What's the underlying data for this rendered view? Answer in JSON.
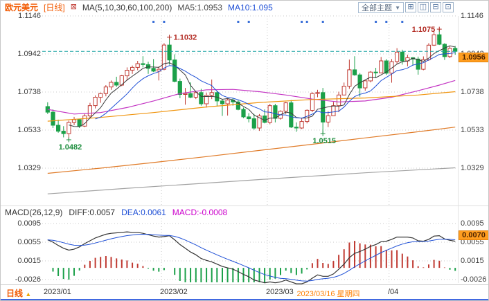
{
  "header": {
    "symbol": "欧元美元",
    "period": "[日线]",
    "ma_title": "MA(5,10,30,60,100,200)",
    "ma5": "MA5:1.0953",
    "ma10": "MA10:1.095",
    "theme_selector": "全部主题"
  },
  "icons": {
    "indicator": "⊠",
    "theme_caret": "▼",
    "period_caret": "▲",
    "layouts": [
      "⊞",
      "◫",
      "⊟",
      "⊡"
    ],
    "layout_names": [
      "layout-grid-button",
      "layout-split-vertical-button",
      "layout-split-horizontal-button",
      "layout-single-button"
    ]
  },
  "main_chart": {
    "y_axis_labels": [
      "1.1146",
      "1.0942",
      "1.0738",
      "1.0533",
      "1.0329"
    ],
    "price_tag": "1.0956"
  },
  "macd_panel": {
    "title": "MACD(26,12,9)",
    "diff_label": "DIFF:0.0057",
    "dea_label": "DEA:0.0061",
    "macd_label": "MACD:-0.0008",
    "y_axis_labels": [
      "0.0095",
      "0.0055",
      "0.0015",
      "-0.0026"
    ],
    "value_tag": "0.0070"
  },
  "bottom_bar": {
    "period_label": "日线",
    "crosshair_date": "2023/03/16 星期四",
    "crosshair_index": 53,
    "x_labels": [
      {
        "text": "2023/01",
        "index": 0
      },
      {
        "text": "2023/02",
        "index": 22
      },
      {
        "text": "2023/03",
        "index": 42
      },
      {
        "text": "/04",
        "index": 65
      }
    ]
  },
  "chart_data": [
    {
      "type": "candlestick",
      "title": "欧元美元 日线 (EUR/USD Daily) with MA(5,10,30,60,100,200)",
      "y_axis": {
        "ticks": [
          1.1146,
          1.0942,
          1.0738,
          1.0533,
          1.0329
        ]
      },
      "x_axis": {
        "labels": [
          "2023/01",
          "2023/02",
          "2023/03",
          "2023/04"
        ],
        "month_start_indices": [
          0,
          22,
          42,
          65
        ]
      },
      "last_price": 1.0956,
      "up_color": "#c03a32",
      "down_color": "#1ba049",
      "last_price_line_color": "#17a2a2",
      "candles": [
        [
          1.066,
          1.0683,
          1.062,
          1.063
        ],
        [
          1.063,
          1.0645,
          1.0545,
          1.056
        ],
        [
          1.056,
          1.059,
          1.052,
          1.0528
        ],
        [
          1.0528,
          1.0555,
          1.0495,
          1.0515
        ],
        [
          1.0515,
          1.0585,
          1.0482,
          1.0575
        ],
        [
          1.0575,
          1.0605,
          1.056,
          1.059
        ],
        [
          1.059,
          1.0595,
          1.0545,
          1.0555
        ],
        [
          1.0555,
          1.062,
          1.055,
          1.061
        ],
        [
          1.061,
          1.068,
          1.06,
          1.0665
        ],
        [
          1.0665,
          1.072,
          1.065,
          1.071
        ],
        [
          1.071,
          1.0735,
          1.068,
          1.073
        ],
        [
          1.073,
          1.0775,
          1.0715,
          1.0765
        ],
        [
          1.0765,
          1.08,
          1.075,
          1.079
        ],
        [
          1.079,
          1.082,
          1.0765,
          1.0775
        ],
        [
          1.0775,
          1.083,
          1.077,
          1.0825
        ],
        [
          1.0825,
          1.087,
          1.08,
          1.0855
        ],
        [
          1.0855,
          1.088,
          1.0835,
          1.087
        ],
        [
          1.087,
          1.0905,
          1.0855,
          1.089
        ],
        [
          1.089,
          1.093,
          1.087,
          1.0885
        ],
        [
          1.0885,
          1.09,
          1.0835,
          1.0865
        ],
        [
          1.0865,
          1.0915,
          1.0845,
          1.085
        ],
        [
          1.085,
          1.0875,
          1.08,
          1.086
        ],
        [
          1.086,
          1.1,
          1.0855,
          1.099
        ],
        [
          1.099,
          1.1032,
          1.0885,
          1.091
        ],
        [
          1.091,
          1.094,
          1.079,
          1.0795
        ],
        [
          1.0795,
          1.081,
          1.0705,
          1.0725
        ],
        [
          1.0725,
          1.076,
          1.067,
          1.073
        ],
        [
          1.073,
          1.079,
          1.0705,
          1.071
        ],
        [
          1.071,
          1.0745,
          1.07,
          1.0735
        ],
        [
          1.0735,
          1.0755,
          1.0665,
          1.0675
        ],
        [
          1.0675,
          1.0735,
          1.0655,
          1.072
        ],
        [
          1.072,
          1.0805,
          1.07,
          1.0735
        ],
        [
          1.0735,
          1.0745,
          1.066,
          1.069
        ],
        [
          1.069,
          1.07,
          1.061,
          1.0675
        ],
        [
          1.0675,
          1.0705,
          1.0612,
          1.0695
        ],
        [
          1.0695,
          1.0705,
          1.0665,
          1.0685
        ],
        [
          1.0685,
          1.0695,
          1.064,
          1.0645
        ],
        [
          1.0645,
          1.0655,
          1.0598,
          1.0605
        ],
        [
          1.0605,
          1.0625,
          1.0575,
          1.0595
        ],
        [
          1.0595,
          1.062,
          1.0536,
          1.0545
        ],
        [
          1.0545,
          1.062,
          1.053,
          1.061
        ],
        [
          1.061,
          1.0645,
          1.057,
          1.0575
        ],
        [
          1.0575,
          1.0675,
          1.0565,
          1.0665
        ],
        [
          1.0665,
          1.0675,
          1.0575,
          1.0597
        ],
        [
          1.0597,
          1.064,
          1.059,
          1.0635
        ],
        [
          1.0635,
          1.0685,
          1.062,
          1.068
        ],
        [
          1.068,
          1.0695,
          1.0545,
          1.055
        ],
        [
          1.055,
          1.0575,
          1.0525,
          1.0545
        ],
        [
          1.0545,
          1.06,
          1.054,
          1.058
        ],
        [
          1.058,
          1.0645,
          1.057,
          1.064
        ],
        [
          1.064,
          1.0737,
          1.063,
          1.073
        ],
        [
          1.073,
          1.075,
          1.071,
          1.0735
        ],
        [
          1.0735,
          1.076,
          1.0515,
          1.0577
        ],
        [
          1.0577,
          1.0635,
          1.055,
          1.0611
        ],
        [
          1.0611,
          1.0685,
          1.061,
          1.0665
        ],
        [
          1.0665,
          1.074,
          1.063,
          1.0722
        ],
        [
          1.0722,
          1.0789,
          1.072,
          1.0769
        ],
        [
          1.0769,
          1.0912,
          1.0755,
          1.0857
        ],
        [
          1.0857,
          1.093,
          1.0825,
          1.083
        ],
        [
          1.083,
          1.084,
          1.0713,
          1.076
        ],
        [
          1.076,
          1.08,
          1.0745,
          1.0798
        ],
        [
          1.0798,
          1.085,
          1.079,
          1.0845
        ],
        [
          1.0845,
          1.0868,
          1.0815,
          1.0841
        ],
        [
          1.0841,
          1.0926,
          1.0838,
          1.0905
        ],
        [
          1.0905,
          1.0915,
          1.083,
          1.0839
        ],
        [
          1.0839,
          1.0915,
          1.0788,
          1.0901
        ],
        [
          1.0901,
          1.0973,
          1.089,
          1.0952
        ],
        [
          1.0952,
          1.0965,
          1.0885,
          1.0905
        ],
        [
          1.0905,
          1.0938,
          1.0876,
          1.0922
        ],
        [
          1.0922,
          1.0925,
          1.088,
          1.0915
        ],
        [
          1.0915,
          1.0928,
          1.0831,
          1.086
        ],
        [
          1.086,
          1.0929,
          1.0855,
          1.0912
        ],
        [
          1.0912,
          1.1,
          1.0905,
          1.0989
        ],
        [
          1.0989,
          1.1068,
          1.0985,
          1.1045
        ],
        [
          1.1045,
          1.1075,
          1.099,
          1.0994
        ],
        [
          1.0994,
          1.1,
          1.091,
          1.0928
        ],
        [
          1.0928,
          1.0983,
          1.092,
          1.0972
        ],
        [
          1.0972,
          1.0985,
          1.0938,
          1.0956
        ]
      ],
      "ma_computed": [
        {
          "name": "MA5",
          "period": 5,
          "color": "#3a3a3a"
        },
        {
          "name": "MA10",
          "period": 10,
          "color": "#1e4fd6"
        }
      ],
      "ma_overlays": [
        {
          "name": "MA30",
          "color": "#c333c3",
          "points": [
            [
              0,
              1.0645
            ],
            [
              5,
              1.062
            ],
            [
              10,
              1.0628
            ],
            [
              15,
              1.0655
            ],
            [
              20,
              1.069
            ],
            [
              25,
              1.073
            ],
            [
              30,
              1.075
            ],
            [
              35,
              1.0752
            ],
            [
              40,
              1.074
            ],
            [
              45,
              1.0722
            ],
            [
              50,
              1.07
            ],
            [
              55,
              1.0685
            ],
            [
              60,
              1.069
            ],
            [
              65,
              1.071
            ],
            [
              70,
              1.0745
            ],
            [
              74,
              1.0775
            ],
            [
              77,
              1.08
            ]
          ]
        },
        {
          "name": "MA60",
          "color": "#f0950f",
          "points": [
            [
              0,
              1.0582
            ],
            [
              10,
              1.0602
            ],
            [
              20,
              1.0628
            ],
            [
              30,
              1.0658
            ],
            [
              40,
              1.0682
            ],
            [
              50,
              1.0698
            ],
            [
              60,
              1.0706
            ],
            [
              70,
              1.0722
            ],
            [
              77,
              1.074
            ]
          ]
        },
        {
          "name": "MA100",
          "color": "#e07b28",
          "points": [
            [
              0,
              1.0302
            ],
            [
              10,
              1.033
            ],
            [
              20,
              1.036
            ],
            [
              30,
              1.0392
            ],
            [
              40,
              1.0425
            ],
            [
              50,
              1.0458
            ],
            [
              60,
              1.0492
            ],
            [
              70,
              1.0525
            ],
            [
              77,
              1.055
            ]
          ]
        },
        {
          "name": "MA200",
          "color": "#a3a3a3",
          "points": [
            [
              0,
              1.0192
            ],
            [
              15,
              1.0222
            ],
            [
              30,
              1.025
            ],
            [
              45,
              1.0278
            ],
            [
              60,
              1.0305
            ],
            [
              77,
              1.0332
            ]
          ]
        }
      ],
      "event_marker_indices": [
        20,
        22,
        36,
        38,
        48,
        49,
        52,
        62,
        64,
        67
      ],
      "event_marker_color": "#3a6fd8",
      "annotations": [
        {
          "text": "1.1032",
          "price": 1.1032,
          "candle_index": 23,
          "side": "above",
          "color": "#b22a22"
        },
        {
          "text": "1.1075",
          "price": 1.1075,
          "candle_index": 74,
          "side": "above",
          "color": "#b22a22"
        },
        {
          "text": "1.0482",
          "price": 1.0482,
          "candle_index": 4,
          "side": "below",
          "color": "#1e8e3e"
        },
        {
          "text": "1.0515",
          "price": 1.0515,
          "candle_index": 52,
          "side": "below",
          "color": "#1e8e3e"
        }
      ]
    },
    {
      "type": "macd",
      "title": "MACD(26,12,9)",
      "y_axis": {
        "ticks": [
          0.0095,
          0.0055,
          0.0015,
          -0.0026
        ]
      },
      "last_tag": 0.007,
      "diff_color": "#333333",
      "dea_color": "#1e4fd6",
      "dea_method": "EMA9 of DIFF",
      "histogram_formula": "2*(DIFF-DEA)",
      "diff": [
        0.006,
        0.0055,
        0.0048,
        0.0042,
        0.0038,
        0.004,
        0.0045,
        0.0052,
        0.0058,
        0.0064,
        0.0068,
        0.0072,
        0.0074,
        0.0075,
        0.0076,
        0.0077,
        0.0076,
        0.0076,
        0.0074,
        0.0071,
        0.0068,
        0.0066,
        0.0067,
        0.0069,
        0.006,
        0.005,
        0.0042,
        0.0034,
        0.0028,
        0.002,
        0.0016,
        0.0013,
        0.0008,
        0.0003,
        0.0,
        -0.0003,
        -0.0008,
        -0.0014,
        -0.0019,
        -0.0026,
        -0.0029,
        -0.0032,
        -0.003,
        -0.0032,
        -0.003,
        -0.0026,
        -0.003,
        -0.0034,
        -0.0034,
        -0.003,
        -0.0022,
        -0.0015,
        -0.0018,
        -0.0018,
        -0.0013,
        -0.0003,
        0.0008,
        0.0022,
        0.0031,
        0.0035,
        0.004,
        0.0046,
        0.005,
        0.0056,
        0.0057,
        0.0061,
        0.0066,
        0.0066,
        0.0066,
        0.0064,
        0.0058,
        0.0057,
        0.0061,
        0.0068,
        0.0069,
        0.0062,
        0.0059,
        0.0057
      ]
    }
  ]
}
